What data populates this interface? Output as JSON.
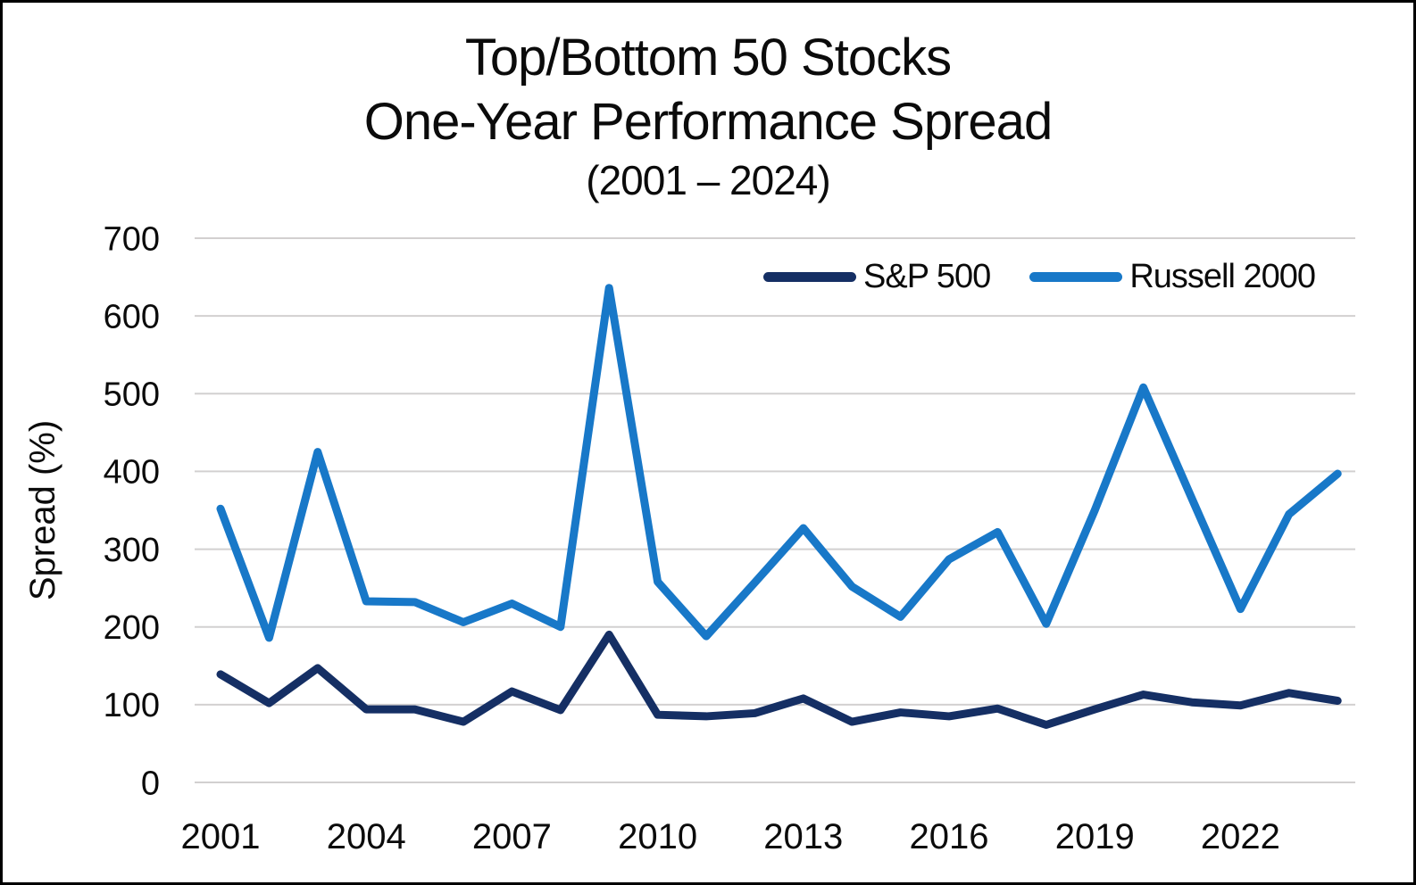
{
  "title": {
    "line1": "Top/Bottom 50 Stocks",
    "line2": "One-Year Performance Spread",
    "line3": "(2001 – 2024)"
  },
  "y_axis": {
    "label": "Spread (%)"
  },
  "colors": {
    "sp500": "#152F64",
    "russell2000": "#1878C8",
    "gridline": "#D2D0D0",
    "text": "#0b0b0b"
  },
  "chart_data": {
    "type": "line",
    "title": "Top/Bottom 50 Stocks One-Year Performance Spread (2001 – 2024)",
    "ylabel": "Spread (%)",
    "xlabel": "",
    "x": [
      2001,
      2002,
      2003,
      2004,
      2005,
      2006,
      2007,
      2008,
      2009,
      2010,
      2011,
      2012,
      2013,
      2014,
      2015,
      2016,
      2017,
      2018,
      2019,
      2020,
      2021,
      2022,
      2023,
      2024
    ],
    "x_tick_labels": [
      "2001",
      "2004",
      "2007",
      "2010",
      "2013",
      "2016",
      "2019",
      "2022"
    ],
    "y_ticks": [
      0,
      100,
      200,
      300,
      400,
      500,
      600,
      700
    ],
    "ylim": [
      0,
      700
    ],
    "grid": "horizontal-only",
    "legend_position": "top-right-inside",
    "series": [
      {
        "name": "S&P 500",
        "color": "#152F64",
        "values": [
          139,
          102,
          147,
          94,
          94,
          78,
          117,
          93,
          190,
          87,
          85,
          89,
          108,
          78,
          90,
          85,
          95,
          74,
          94,
          113,
          103,
          99,
          115,
          105
        ]
      },
      {
        "name": "Russell 2000",
        "color": "#1878C8",
        "values": [
          352,
          186,
          425,
          233,
          232,
          206,
          230,
          200,
          636,
          258,
          188,
          257,
          327,
          252,
          213,
          287,
          322,
          204,
          350,
          508,
          365,
          223,
          345,
          397
        ]
      }
    ]
  }
}
